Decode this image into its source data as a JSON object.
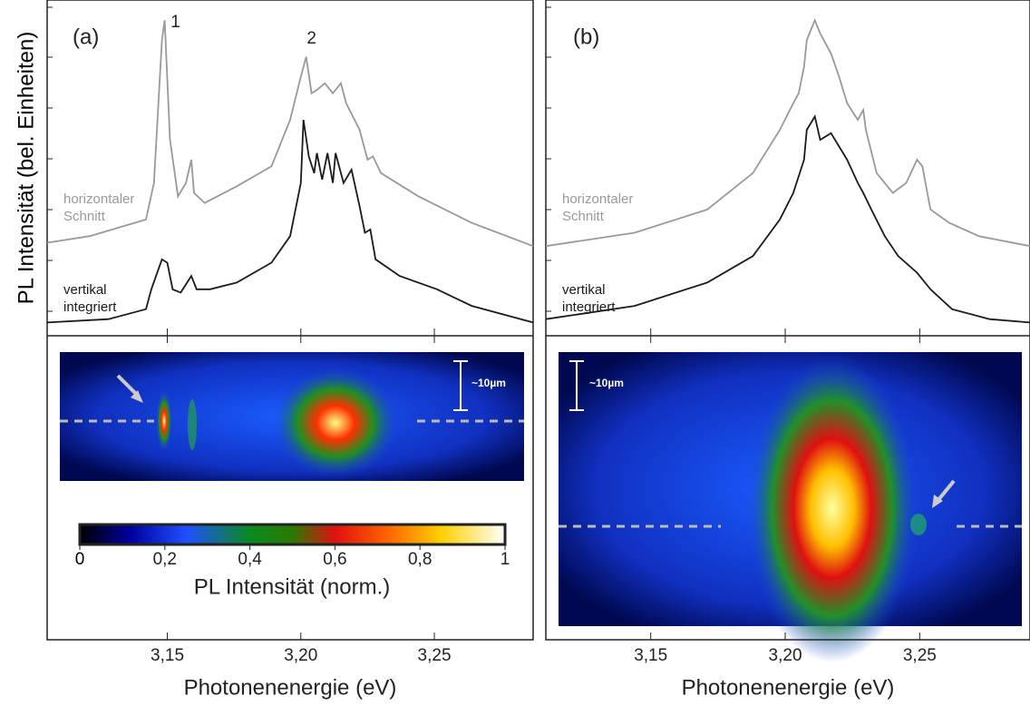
{
  "ylabel": "PL Intensität (bel. Einheiten)",
  "chart_data": [
    {
      "type": "line",
      "panel": "(a)",
      "xlabel": "Photonenenergie (eV)",
      "xlim": [
        3.105,
        3.287
      ],
      "ylim": [
        0,
        10
      ],
      "xticks": [
        {
          "value": 3.15,
          "label": "3,15"
        },
        {
          "value": 3.2,
          "label": "3,20"
        },
        {
          "value": 3.25,
          "label": "3,25"
        }
      ],
      "annotations": [
        {
          "text": "1",
          "x": 3.149
        },
        {
          "text": "2",
          "x": 3.202
        }
      ],
      "scale_bar": "~10µm",
      "series": [
        {
          "name": "horizontaler\nSchnitt",
          "color": "#999999",
          "x": [
            3.105,
            3.121,
            3.142,
            3.145,
            3.148,
            3.149,
            3.151,
            3.154,
            3.157,
            3.159,
            3.16,
            3.164,
            3.176,
            3.189,
            3.196,
            3.2,
            3.202,
            3.204,
            3.206,
            3.209,
            3.212,
            3.215,
            3.217,
            3.222,
            3.225,
            3.227,
            3.23,
            3.244,
            3.264,
            3.287
          ],
          "values": [
            2.8,
            3.0,
            3.5,
            4.6,
            8.9,
            9.5,
            5.9,
            4.2,
            4.6,
            5.3,
            4.3,
            4.0,
            4.5,
            5.1,
            6.5,
            7.8,
            8.4,
            7.3,
            7.4,
            7.6,
            7.3,
            7.6,
            7.0,
            6.2,
            5.3,
            5.4,
            4.9,
            4.2,
            3.4,
            2.7
          ]
        },
        {
          "name": "vertikal\nintegriert",
          "color": "#1a1a1a",
          "x": [
            3.105,
            3.128,
            3.142,
            3.144,
            3.148,
            3.15,
            3.152,
            3.155,
            3.159,
            3.161,
            3.166,
            3.176,
            3.189,
            3.196,
            3.2,
            3.201,
            3.203,
            3.205,
            3.206,
            3.208,
            3.21,
            3.212,
            3.213,
            3.216,
            3.219,
            3.222,
            3.224,
            3.226,
            3.228,
            3.237,
            3.251,
            3.264,
            3.287
          ],
          "values": [
            0.4,
            0.5,
            0.8,
            1.4,
            2.3,
            2.2,
            1.4,
            1.3,
            1.8,
            1.4,
            1.4,
            1.6,
            2.2,
            3.0,
            4.6,
            6.5,
            5.4,
            4.9,
            5.5,
            4.7,
            5.5,
            4.6,
            5.5,
            4.6,
            5.0,
            3.9,
            3.1,
            3.2,
            2.3,
            1.8,
            1.4,
            0.9,
            0.4
          ]
        }
      ],
      "colorbar": {
        "label": "PL Intensität (norm.)",
        "lim": [
          0,
          1
        ],
        "ticks": [
          0,
          {
            "value": 0.2,
            "label": "0,2"
          },
          {
            "value": 0.4,
            "label": "0,4"
          },
          {
            "value": 0.6,
            "label": "0,6"
          },
          {
            "value": 0.8,
            "label": "0,8"
          },
          1
        ]
      }
    },
    {
      "type": "line",
      "panel": "(b)",
      "xlabel": "Photonenenergie (eV)",
      "xlim": [
        3.111,
        3.291
      ],
      "ylim": [
        0,
        10
      ],
      "xticks": [
        {
          "value": 3.15,
          "label": "3,15"
        },
        {
          "value": 3.2,
          "label": "3,20"
        },
        {
          "value": 3.25,
          "label": "3,25"
        }
      ],
      "scale_bar": "~10µm",
      "series": [
        {
          "name": "horizontaler\nSchnitt",
          "color": "#999999",
          "x": [
            3.111,
            3.144,
            3.171,
            3.188,
            3.198,
            3.203,
            3.205,
            3.207,
            3.208,
            3.211,
            3.213,
            3.217,
            3.22,
            3.223,
            3.227,
            3.229,
            3.23,
            3.234,
            3.24,
            3.245,
            3.249,
            3.251,
            3.254,
            3.261,
            3.272,
            3.291
          ],
          "values": [
            2.7,
            3.1,
            3.8,
            4.9,
            6.2,
            7.0,
            7.3,
            8.1,
            8.9,
            9.5,
            9.1,
            8.5,
            7.8,
            7.0,
            6.5,
            6.8,
            6.2,
            4.9,
            4.3,
            4.6,
            5.3,
            5.1,
            3.8,
            3.4,
            3.0,
            2.7
          ]
        },
        {
          "name": "vertikal\nintegriert",
          "color": "#1a1a1a",
          "x": [
            3.111,
            3.144,
            3.171,
            3.188,
            3.198,
            3.203,
            3.207,
            3.208,
            3.211,
            3.213,
            3.217,
            3.22,
            3.223,
            3.227,
            3.229,
            3.232,
            3.237,
            3.242,
            3.249,
            3.254,
            3.262,
            3.276,
            3.291
          ],
          "values": [
            0.5,
            0.9,
            1.6,
            2.4,
            3.5,
            4.3,
            5.3,
            6.2,
            6.6,
            5.9,
            6.1,
            5.7,
            5.3,
            4.6,
            4.3,
            3.8,
            3.0,
            2.4,
            1.9,
            1.4,
            0.8,
            0.5,
            0.4
          ]
        }
      ]
    }
  ]
}
